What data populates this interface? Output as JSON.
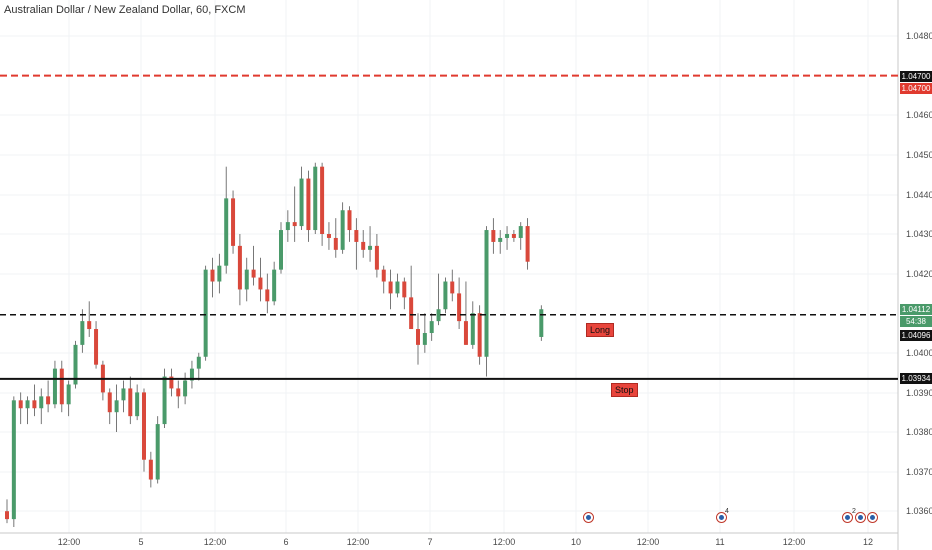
{
  "header": {
    "symbol_title": "Australian Dollar / New Zealand Dollar, 60, FXCM"
  },
  "colors": {
    "up": "#4a9a6a",
    "down": "#d9483b",
    "wick": "#555555",
    "target_line": "#e03a2f",
    "entry_line": "#111111",
    "stop_line": "#111111",
    "axis_badge_dark": "#111111",
    "axis_badge_green": "#4a9a6a",
    "axis_badge_red": "#e03a2f"
  },
  "price_axis": {
    "ticks": [
      "1.04800",
      "1.04600",
      "1.04500",
      "1.04400",
      "1.04300",
      "1.04200",
      "1.04000",
      "1.03900",
      "1.03800",
      "1.03700",
      "1.03600"
    ],
    "tick_values": [
      1.048,
      1.046,
      1.045,
      1.044,
      1.043,
      1.042,
      1.04,
      1.039,
      1.038,
      1.037,
      1.036
    ],
    "badges": {
      "target_a": "1.04700",
      "target_b": "1.04700",
      "last_price": "1.04112",
      "countdown": "54:38",
      "entry": "1.04096",
      "stop": "1.03934"
    }
  },
  "time_axis": {
    "labels": [
      "12:00",
      "5",
      "12:00",
      "6",
      "12:00",
      "7",
      "12:00",
      "10",
      "12:00",
      "11",
      "12:00",
      "12"
    ]
  },
  "trade_levels": {
    "target": 1.047,
    "entry": 1.04096,
    "stop": 1.03934,
    "long_label": "Long",
    "stop_label": "Stop"
  },
  "events": {
    "icons": [
      "economic-event",
      "economic-event",
      "economic-event",
      "economic-event",
      "economic-event"
    ],
    "count_a": "4",
    "count_b": "2"
  },
  "chart_data": {
    "type": "candlestick",
    "title": "Australian Dollar / New Zealand Dollar, 60, FXCM",
    "ylim": [
      1.0355,
      1.0489
    ],
    "candles": [
      [
        1.036,
        1.0363,
        1.0357,
        1.0358
      ],
      [
        1.0358,
        1.0389,
        1.0356,
        1.0388
      ],
      [
        1.0388,
        1.039,
        1.0382,
        1.0386
      ],
      [
        1.0386,
        1.0389,
        1.0382,
        1.0388
      ],
      [
        1.0388,
        1.0392,
        1.0384,
        1.0386
      ],
      [
        1.0386,
        1.0391,
        1.0382,
        1.0389
      ],
      [
        1.0389,
        1.0393,
        1.0385,
        1.0387
      ],
      [
        1.0387,
        1.0398,
        1.0386,
        1.0396
      ],
      [
        1.0396,
        1.0398,
        1.0385,
        1.0387
      ],
      [
        1.0387,
        1.0393,
        1.0384,
        1.0392
      ],
      [
        1.0392,
        1.0403,
        1.0391,
        1.0402
      ],
      [
        1.0402,
        1.0411,
        1.04,
        1.0408
      ],
      [
        1.0408,
        1.0413,
        1.0404,
        1.0406
      ],
      [
        1.0406,
        1.0408,
        1.0396,
        1.0397
      ],
      [
        1.0397,
        1.0398,
        1.0388,
        1.039
      ],
      [
        1.039,
        1.0391,
        1.0382,
        1.0385
      ],
      [
        1.0385,
        1.0392,
        1.038,
        1.0388
      ],
      [
        1.0388,
        1.0393,
        1.0385,
        1.0391
      ],
      [
        1.0391,
        1.0394,
        1.0382,
        1.0384
      ],
      [
        1.0384,
        1.0392,
        1.0383,
        1.039
      ],
      [
        1.039,
        1.0391,
        1.037,
        1.0373
      ],
      [
        1.0373,
        1.0375,
        1.0366,
        1.0368
      ],
      [
        1.0368,
        1.0384,
        1.0367,
        1.0382
      ],
      [
        1.0382,
        1.0396,
        1.0381,
        1.0394
      ],
      [
        1.0394,
        1.0396,
        1.0389,
        1.0391
      ],
      [
        1.0391,
        1.0393,
        1.0386,
        1.0389
      ],
      [
        1.0389,
        1.0395,
        1.0387,
        1.0393
      ],
      [
        1.0393,
        1.0398,
        1.0391,
        1.0396
      ],
      [
        1.0396,
        1.04,
        1.0393,
        1.0399
      ],
      [
        1.0399,
        1.0422,
        1.0398,
        1.0421
      ],
      [
        1.0421,
        1.0424,
        1.0414,
        1.0418
      ],
      [
        1.0418,
        1.0425,
        1.0415,
        1.0422
      ],
      [
        1.0422,
        1.0447,
        1.042,
        1.0439
      ],
      [
        1.0439,
        1.0441,
        1.0425,
        1.0427
      ],
      [
        1.0427,
        1.043,
        1.0412,
        1.0416
      ],
      [
        1.0416,
        1.0424,
        1.0413,
        1.0421
      ],
      [
        1.0421,
        1.0427,
        1.0417,
        1.0419
      ],
      [
        1.0419,
        1.0424,
        1.0413,
        1.0416
      ],
      [
        1.0416,
        1.042,
        1.041,
        1.0413
      ],
      [
        1.0413,
        1.0423,
        1.0412,
        1.0421
      ],
      [
        1.0421,
        1.0433,
        1.042,
        1.0431
      ],
      [
        1.0431,
        1.0436,
        1.0428,
        1.0433
      ],
      [
        1.0433,
        1.0442,
        1.0428,
        1.0432
      ],
      [
        1.0432,
        1.0447,
        1.0431,
        1.0444
      ],
      [
        1.0444,
        1.0446,
        1.0428,
        1.0431
      ],
      [
        1.0431,
        1.0448,
        1.043,
        1.0447
      ],
      [
        1.0447,
        1.0448,
        1.0427,
        1.043
      ],
      [
        1.043,
        1.0433,
        1.0426,
        1.0429
      ],
      [
        1.0429,
        1.0434,
        1.0424,
        1.0426
      ],
      [
        1.0426,
        1.0438,
        1.0425,
        1.0436
      ],
      [
        1.0436,
        1.0437,
        1.0428,
        1.0431
      ],
      [
        1.0431,
        1.0434,
        1.0421,
        1.0428
      ],
      [
        1.0428,
        1.0431,
        1.0424,
        1.0426
      ],
      [
        1.0426,
        1.0432,
        1.0423,
        1.0427
      ],
      [
        1.0427,
        1.043,
        1.0419,
        1.0421
      ],
      [
        1.0421,
        1.0422,
        1.0415,
        1.0418
      ],
      [
        1.0418,
        1.0421,
        1.0411,
        1.0415
      ],
      [
        1.0415,
        1.042,
        1.0414,
        1.0418
      ],
      [
        1.0418,
        1.0419,
        1.0411,
        1.0414
      ],
      [
        1.0414,
        1.0422,
        1.0409,
        1.0406
      ],
      [
        1.0406,
        1.041,
        1.0397,
        1.0402
      ],
      [
        1.0402,
        1.041,
        1.04,
        1.0405
      ],
      [
        1.0405,
        1.041,
        1.0403,
        1.0408
      ],
      [
        1.0408,
        1.042,
        1.0407,
        1.0411
      ],
      [
        1.0411,
        1.0419,
        1.041,
        1.0418
      ],
      [
        1.0418,
        1.0421,
        1.0413,
        1.0415
      ],
      [
        1.0415,
        1.0419,
        1.0406,
        1.0408
      ],
      [
        1.0408,
        1.0418,
        1.0402,
        1.0402
      ],
      [
        1.0402,
        1.0413,
        1.0401,
        1.041
      ],
      [
        1.041,
        1.0412,
        1.0397,
        1.0399
      ],
      [
        1.0399,
        1.0432,
        1.0394,
        1.0431
      ],
      [
        1.0431,
        1.0434,
        1.0425,
        1.0428
      ],
      [
        1.0428,
        1.0431,
        1.0425,
        1.0429
      ],
      [
        1.0429,
        1.0432,
        1.0426,
        1.043
      ],
      [
        1.043,
        1.0431,
        1.0428,
        1.0429
      ],
      [
        1.0429,
        1.0433,
        1.0426,
        1.0432
      ],
      [
        1.0432,
        1.0434,
        1.0421,
        1.0423
      ],
      null,
      [
        1.0404,
        1.0412,
        1.0403,
        1.0411
      ]
    ]
  }
}
